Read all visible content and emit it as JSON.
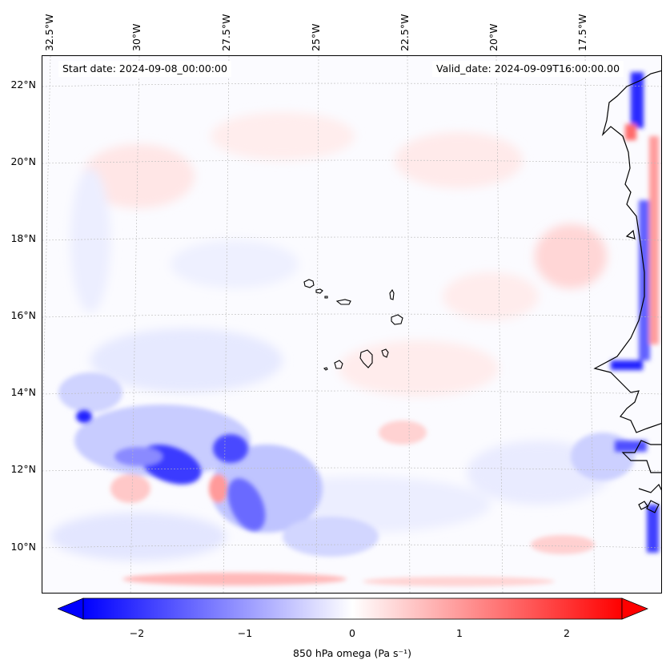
{
  "map": {
    "start_date": "Start date: 2024-09-08_00:00:00",
    "valid_date": "Valid_date: 2024-09-09T16:00:00.00",
    "lon_labels": [
      "32.5°W",
      "30°W",
      "27.5°W",
      "25°W",
      "22.5°W",
      "20°W",
      "17.5°W"
    ],
    "lat_labels": [
      "22°N",
      "20°N",
      "18°N",
      "16°N",
      "14°N",
      "12°N",
      "10°N"
    ],
    "variable": "850 hPa omega",
    "units": "Pa s⁻¹",
    "colormap": "bwr",
    "negative_color": "#0000ff",
    "positive_color": "#ff0000",
    "zero_color": "#ffffff",
    "coastline_color": "#000000",
    "gridlines": true
  },
  "colorbar": {
    "ticks": [
      "−2",
      "−1",
      "0",
      "1",
      "2"
    ],
    "range": [
      -2.5,
      2.5
    ],
    "extend": "both",
    "label": "850 hPa omega (Pa s⁻¹)"
  }
}
